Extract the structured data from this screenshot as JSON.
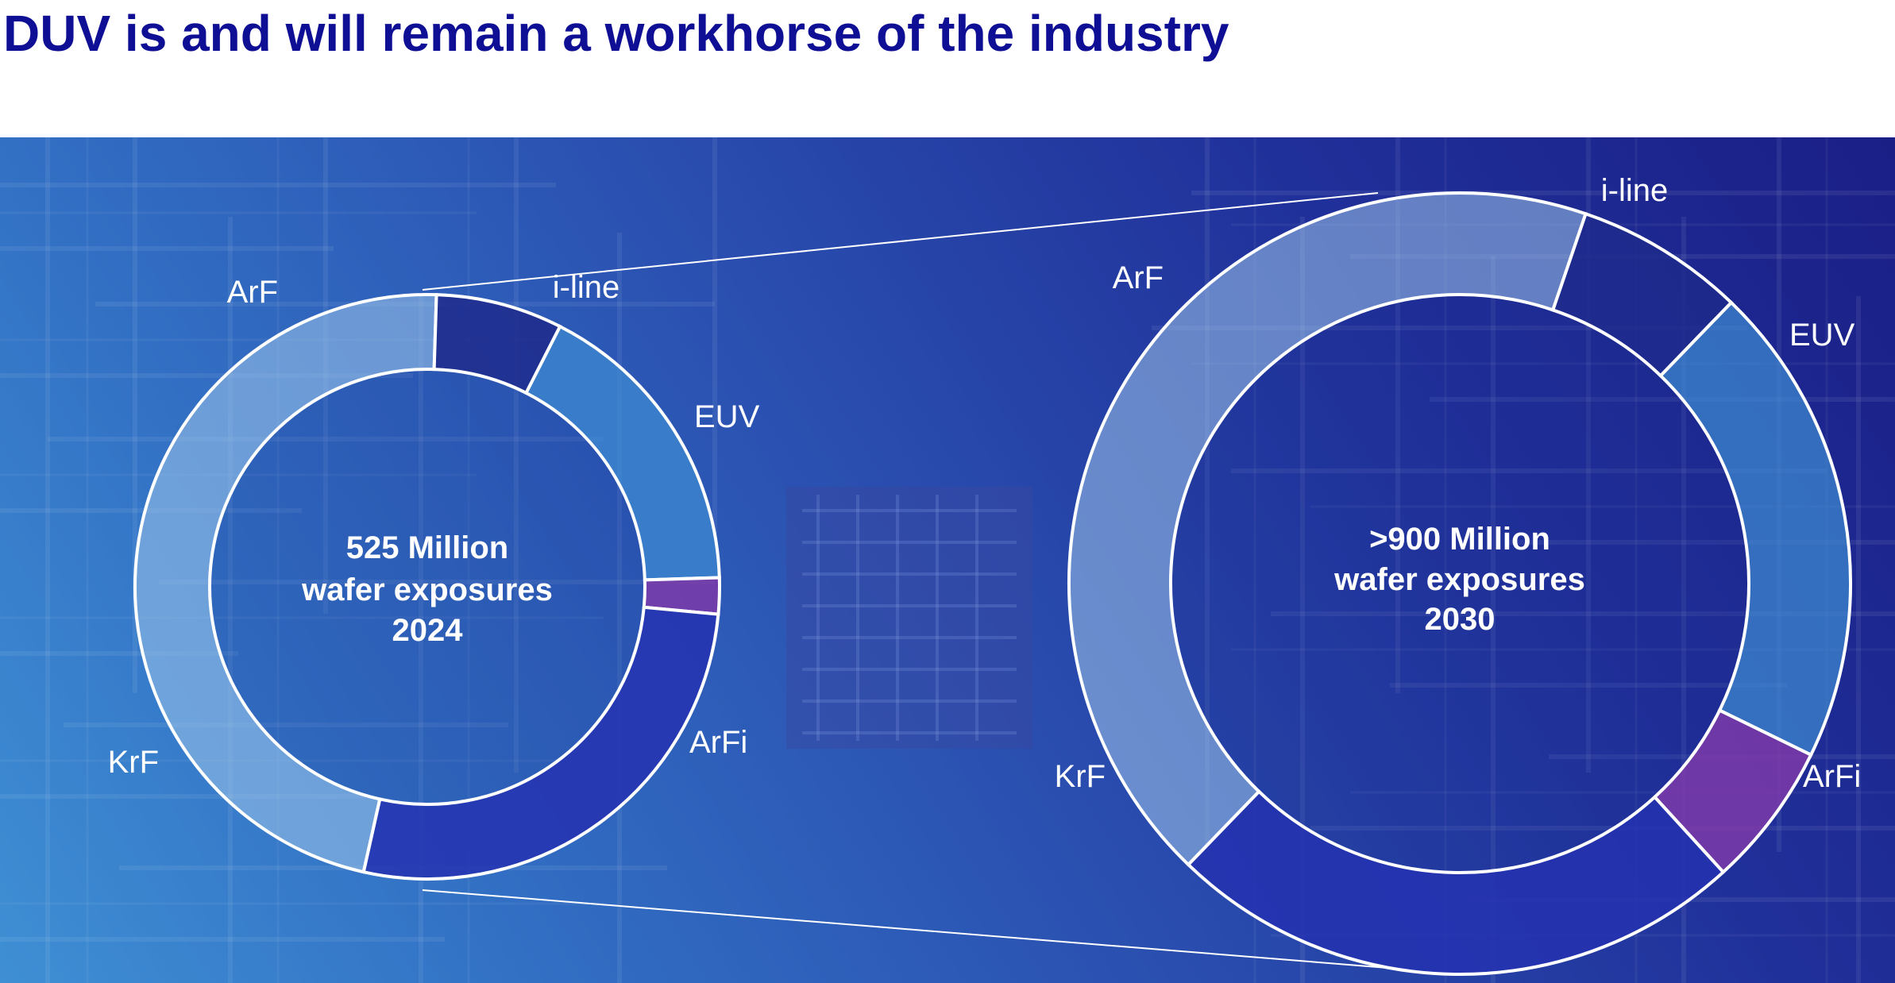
{
  "title": "DUV is and will remain a workhorse of the industry",
  "colors": {
    "title": "#0f0f96",
    "i-line": "#3e8bd2",
    "EUV": "#7c3aa8",
    "ArFi": "#2531b0",
    "KrF": "#9fc4ea",
    "ArF": "#1e2a8c"
  },
  "chart_data": [
    {
      "type": "pie",
      "variant": "donut",
      "center_text": [
        "525 Million",
        "wafer exposures",
        "2024"
      ],
      "categories": [
        "i-line",
        "EUV",
        "ArFi",
        "KrF",
        "ArF"
      ],
      "values": [
        17,
        2,
        27,
        47,
        7
      ],
      "unit": "approx. share of wafer exposures (%)"
    },
    {
      "type": "pie",
      "variant": "donut",
      "center_text": [
        ">900 Million",
        "wafer exposures",
        "2030"
      ],
      "categories": [
        "i-line",
        "EUV",
        "ArFi",
        "KrF",
        "ArF"
      ],
      "values": [
        20,
        6,
        24,
        43,
        7
      ],
      "unit": "approx. share of wafer exposures (%)"
    }
  ]
}
